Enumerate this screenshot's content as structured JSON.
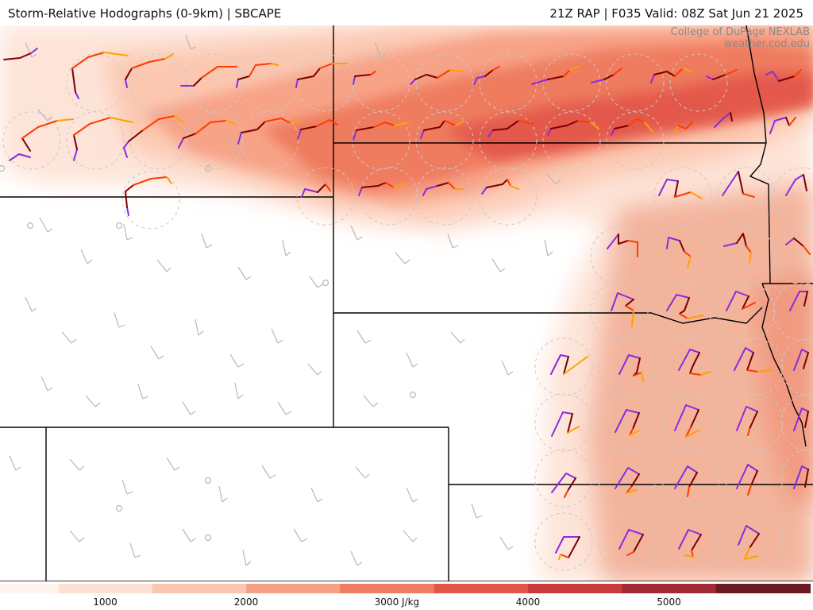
{
  "header": {
    "title": "Storm-Relative Hodographs (0-9km) | SBCAPE",
    "run_info": "21Z RAP | F035 Valid: 08Z Sat Jun 21 2025"
  },
  "credit": {
    "line1": "College of DuPage NEXLAB",
    "line2": "weather.cod.edu"
  },
  "colorbar": {
    "unit": "J/kg",
    "tick_labels": [
      "1000",
      "2000",
      "3000 J/kg",
      "4000",
      "5000"
    ],
    "tick_values": [
      1000,
      2000,
      3000,
      4000,
      5000
    ],
    "range": [
      0,
      6000
    ],
    "stops": [
      "#fff3ee",
      "#fde1d4",
      "#fbc6b0",
      "#f7a184",
      "#f07d61",
      "#e3574a",
      "#c93a3a",
      "#a22a32",
      "#6e1a24"
    ]
  },
  "hodograph_colors": {
    "layer_0_1km": "#7a0000",
    "layer_1_3km": "#ff3b00",
    "layer_3_6km": "#ffa000",
    "layer_6_9km": "#8a2be2"
  }
}
